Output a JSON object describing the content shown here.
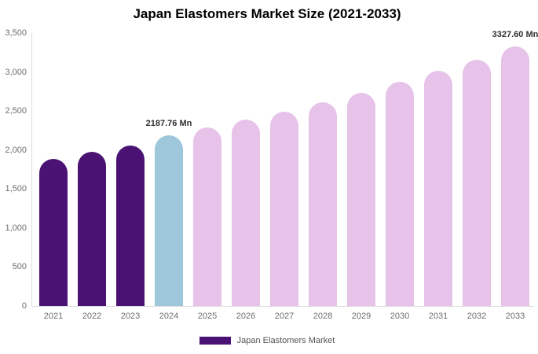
{
  "chart_data": {
    "type": "bar",
    "title": "Japan Elastomers Market Size (2021-2033)",
    "xlabel": "",
    "ylabel": "",
    "categories": [
      "2021",
      "2022",
      "2023",
      "2024",
      "2025",
      "2026",
      "2027",
      "2028",
      "2029",
      "2030",
      "2031",
      "2032",
      "2033"
    ],
    "series": [
      {
        "name": "Japan Elastomers Market",
        "values": [
          1885,
          1975,
          2055,
          2187.76,
          2285,
          2390,
          2495,
          2615,
          2730,
          2870,
          3015,
          3160,
          3327.6
        ]
      }
    ],
    "bar_colors": [
      "#4A1272",
      "#4A1272",
      "#4A1272",
      "#9EC7DC",
      "#E7C2E9",
      "#E7C2E9",
      "#E7C2E9",
      "#E7C2E9",
      "#E7C2E9",
      "#E7C2E9",
      "#E7C2E9",
      "#E7C2E9",
      "#E7C2E9"
    ],
    "ylim": [
      0,
      3500
    ],
    "ytick_labels": [
      "0",
      "500",
      "1,000",
      "1,500",
      "2,000",
      "2,500",
      "3,000",
      "3,500"
    ],
    "grid": false,
    "annotations": [
      {
        "index": 3,
        "text": "2187.76 Mn"
      },
      {
        "index": 12,
        "text": "3327.60 Mn"
      }
    ],
    "legend": [
      {
        "label": "Japan Elastomers Market",
        "color": "#4A1272"
      }
    ],
    "legend_position": "bottom",
    "axis_color": "#dddddd"
  }
}
